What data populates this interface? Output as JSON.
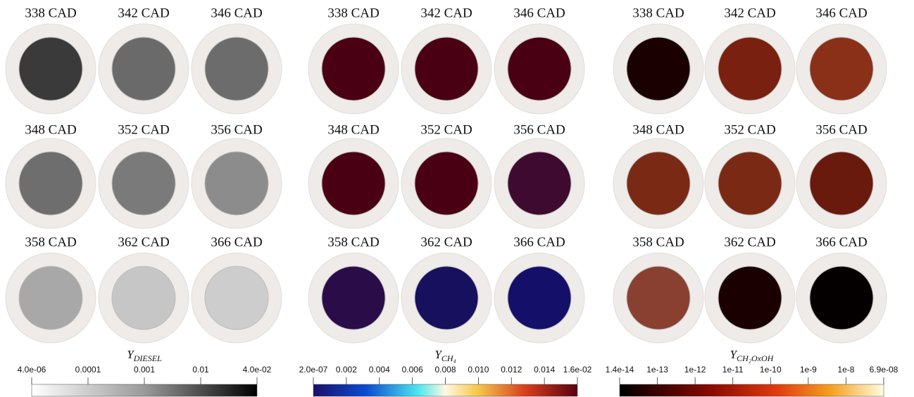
{
  "panels": [
    {
      "labels": [
        "338 CAD",
        "342 CAD",
        "346 CAD",
        "348 CAD",
        "352 CAD",
        "356 CAD",
        "358 CAD",
        "362 CAD",
        "366 CAD"
      ],
      "colorbar": {
        "title": {
          "main": "Y",
          "sub": "DIESEL"
        },
        "ticks": [
          "4.0e-06",
          "0.0001",
          "0.001",
          "0.01",
          "4.0e-02"
        ]
      }
    },
    {
      "labels": [
        "338 CAD",
        "342 CAD",
        "346 CAD",
        "348 CAD",
        "352 CAD",
        "356 CAD",
        "358 CAD",
        "362 CAD",
        "366 CAD"
      ],
      "colorbar": {
        "title": {
          "main": "Y",
          "sub": "CH₄"
        },
        "ticks": [
          "2.0e-07",
          "0.002",
          "0.004",
          "0.006",
          "0.008",
          "0.010",
          "0.012",
          "0.014",
          "1.6e-02"
        ]
      }
    },
    {
      "labels": [
        "338 CAD",
        "342 CAD",
        "346 CAD",
        "348 CAD",
        "352 CAD",
        "356 CAD",
        "358 CAD",
        "362 CAD",
        "366 CAD"
      ],
      "colorbar": {
        "title": {
          "main": "Y",
          "sub": "CH₂OxOH"
        },
        "ticks": [
          "1.4e-14",
          "1e-13",
          "1e-12",
          "1e-11",
          "1e-10",
          "1e-9",
          "1e-8",
          "6.9e-08"
        ]
      }
    }
  ]
}
